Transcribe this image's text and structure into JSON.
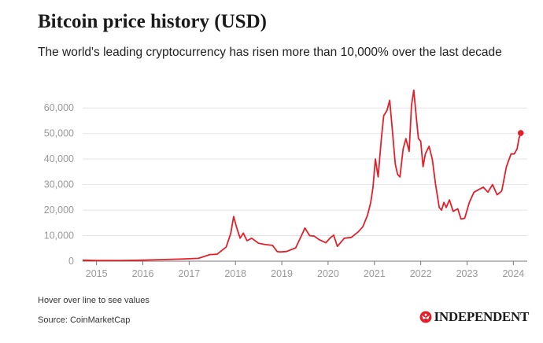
{
  "header": {
    "title": "Bitcoin price history (USD)",
    "subtitle": "The world's leading cryptocurrency has risen more than 10,000% over the last decade"
  },
  "footer": {
    "note": "Hover over line to see values",
    "source": "Source: CoinMarketCap",
    "logo_text": "INDEPENDENT",
    "logo_icon": "eagle-icon"
  },
  "colors": {
    "line": "#e3202a",
    "grid": "#e4e4e4",
    "tick": "#999999",
    "axis": "#777777"
  },
  "chart_data": {
    "type": "line",
    "title": "Bitcoin price history (USD)",
    "xlabel": "",
    "ylabel": "",
    "x_ticks": [
      "2015",
      "2016",
      "2017",
      "2018",
      "2019",
      "2020",
      "2021",
      "2022",
      "2023",
      "2024"
    ],
    "y_ticks": [
      "0",
      "10,000",
      "20,000",
      "30,000",
      "40,000",
      "50,000",
      "60,000"
    ],
    "ylim": [
      0,
      69000
    ],
    "xlim": [
      2014.7,
      2024.3
    ],
    "grid": true,
    "end_marker": true,
    "series": [
      {
        "x": [
          2014.7,
          2015.0,
          2015.5,
          2016.0,
          2016.5,
          2016.9,
          2017.2,
          2017.45,
          2017.6,
          2017.8,
          2017.9,
          2017.96,
          2018.02,
          2018.1,
          2018.17,
          2018.25,
          2018.35,
          2018.5,
          2018.65,
          2018.8,
          2018.9,
          2018.96,
          2019.1,
          2019.3,
          2019.45,
          2019.5,
          2019.6,
          2019.7,
          2019.8,
          2019.95,
          2020.05,
          2020.12,
          2020.2,
          2020.35,
          2020.5,
          2020.65,
          2020.75,
          2020.85,
          2020.92,
          2020.97,
          2021.02,
          2021.08,
          2021.15,
          2021.2,
          2021.27,
          2021.33,
          2021.38,
          2021.45,
          2021.5,
          2021.55,
          2021.62,
          2021.68,
          2021.75,
          2021.8,
          2021.85,
          2021.9,
          2021.95,
          2022.0,
          2022.05,
          2022.1,
          2022.18,
          2022.25,
          2022.32,
          2022.4,
          2022.45,
          2022.5,
          2022.55,
          2022.62,
          2022.7,
          2022.8,
          2022.87,
          2022.95,
          2023.05,
          2023.15,
          2023.25,
          2023.35,
          2023.45,
          2023.55,
          2023.65,
          2023.75,
          2023.85,
          2023.95,
          2024.02,
          2024.08,
          2024.12,
          2024.16
        ],
        "values": [
          400,
          250,
          280,
          430,
          650,
          900,
          1100,
          2600,
          2700,
          5500,
          11000,
          17500,
          13500,
          9000,
          11000,
          8000,
          9000,
          7000,
          6500,
          6200,
          3800,
          3600,
          3800,
          5200,
          11000,
          13000,
          10000,
          9800,
          8500,
          7200,
          9200,
          10200,
          5800,
          9000,
          9300,
          11500,
          13500,
          18000,
          23000,
          29000,
          40000,
          33000,
          48000,
          57000,
          59000,
          63000,
          53000,
          38000,
          34000,
          33000,
          44000,
          48000,
          43000,
          61000,
          67000,
          57000,
          48000,
          47000,
          37000,
          42000,
          45000,
          40000,
          30000,
          21000,
          20000,
          23000,
          21000,
          24000,
          19500,
          20500,
          16500,
          16800,
          23000,
          27000,
          28000,
          29000,
          27000,
          30000,
          26000,
          27500,
          37000,
          42000,
          42000,
          44000,
          48000,
          50200
        ]
      }
    ]
  }
}
